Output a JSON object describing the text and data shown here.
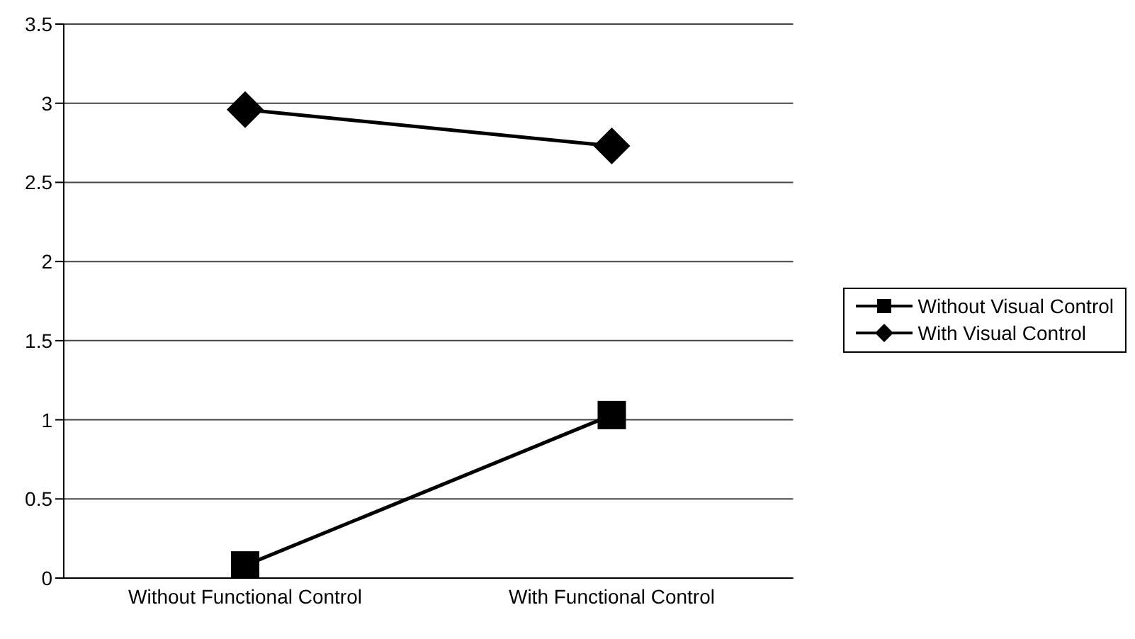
{
  "chart_data": {
    "type": "line",
    "categories": [
      "Without Functional Control",
      "With Functional Control"
    ],
    "series": [
      {
        "name": "Without Visual Control",
        "color": "#000000",
        "marker": "square",
        "values": [
          0.08,
          1.03
        ]
      },
      {
        "name": "With Visual Control",
        "color": "#000000",
        "marker": "diamond",
        "values": [
          2.96,
          2.73
        ]
      }
    ],
    "ylim": [
      0,
      3.5
    ],
    "yticks": [
      0,
      0.5,
      1,
      1.5,
      2,
      2.5,
      3,
      3.5
    ],
    "grid": "y",
    "legend": "right",
    "line_style": "solid"
  }
}
